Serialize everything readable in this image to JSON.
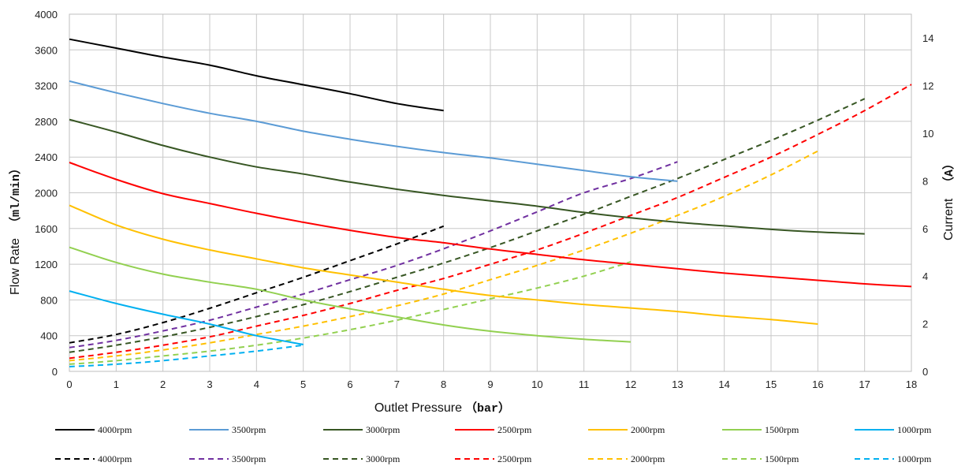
{
  "chart_data": {
    "type": "line",
    "x_axis": {
      "label": "Outlet Pressure",
      "unit": "（bar）",
      "range": [
        0,
        18
      ],
      "ticks": [
        "0",
        "1",
        "2",
        "3",
        "4",
        "5",
        "6",
        "7",
        "8",
        "9",
        "10",
        "11",
        "12",
        "13",
        "14",
        "15",
        "16",
        "17",
        "18"
      ]
    },
    "y_axis_left": {
      "label": "Flow Rate",
      "unit": "（ml/min）",
      "range": [
        0,
        4000
      ],
      "ticks": [
        "0",
        "400",
        "800",
        "1200",
        "1600",
        "2000",
        "2400",
        "2800",
        "3200",
        "3600",
        "4000"
      ]
    },
    "y_axis_right": {
      "label": "Current",
      "unit": "（A）",
      "range": [
        0,
        15
      ],
      "ticks": [
        "0",
        "2",
        "4",
        "6",
        "8",
        "10",
        "12",
        "14"
      ]
    },
    "grid": true,
    "legend_position": "bottom",
    "flow_series": [
      {
        "name": "4000rpm",
        "color": "#000000",
        "x": [
          0,
          1,
          2,
          3,
          4,
          5,
          6,
          7,
          8
        ],
        "y": [
          3720,
          3620,
          3520,
          3430,
          3310,
          3210,
          3110,
          3000,
          2920
        ]
      },
      {
        "name": "3500rpm",
        "color": "#5b9bd5",
        "x": [
          0,
          1,
          2,
          3,
          4,
          5,
          6,
          7,
          8,
          9,
          10,
          11,
          12,
          13
        ],
        "y": [
          3250,
          3120,
          3000,
          2890,
          2800,
          2690,
          2600,
          2520,
          2450,
          2390,
          2320,
          2250,
          2180,
          2130
        ]
      },
      {
        "name": "3000rpm",
        "color": "#375623",
        "x": [
          0,
          1,
          2,
          3,
          4,
          5,
          6,
          7,
          8,
          9,
          10,
          11,
          12,
          13,
          14,
          15,
          16,
          17
        ],
        "y": [
          2820,
          2680,
          2530,
          2400,
          2290,
          2210,
          2120,
          2040,
          1970,
          1910,
          1850,
          1780,
          1720,
          1670,
          1630,
          1590,
          1560,
          1540
        ]
      },
      {
        "name": "2500rpm",
        "color": "#ff0000",
        "x": [
          0,
          1,
          2,
          3,
          4,
          5,
          6,
          7,
          8,
          9,
          10,
          11,
          12,
          13,
          14,
          15,
          16,
          17,
          18
        ],
        "y": [
          2340,
          2150,
          1990,
          1880,
          1770,
          1670,
          1580,
          1500,
          1440,
          1370,
          1310,
          1250,
          1200,
          1150,
          1100,
          1060,
          1020,
          980,
          950
        ]
      },
      {
        "name": "2000rpm",
        "color": "#ffc000",
        "x": [
          0,
          1,
          2,
          3,
          4,
          5,
          6,
          7,
          8,
          9,
          10,
          11,
          12,
          13,
          14,
          15,
          16
        ],
        "y": [
          1860,
          1640,
          1480,
          1360,
          1260,
          1160,
          1080,
          1000,
          920,
          850,
          800,
          750,
          710,
          670,
          620,
          580,
          530
        ]
      },
      {
        "name": "1500rpm",
        "color": "#92d050",
        "x": [
          0,
          1,
          2,
          3,
          4,
          5,
          6,
          7,
          8,
          9,
          10,
          11,
          12
        ],
        "y": [
          1390,
          1220,
          1090,
          1000,
          920,
          800,
          700,
          610,
          520,
          450,
          400,
          360,
          330
        ]
      },
      {
        "name": "1000rpm",
        "color": "#00b0f0",
        "x": [
          0,
          1,
          2,
          3,
          4,
          5
        ],
        "y": [
          900,
          760,
          640,
          530,
          400,
          300
        ]
      }
    ],
    "current_series": [
      {
        "name": "4000rpm",
        "color": "#000000",
        "x": [
          0,
          1,
          2,
          3,
          4,
          5,
          6,
          7,
          8
        ],
        "y": [
          1.2,
          1.55,
          2.05,
          2.65,
          3.3,
          3.95,
          4.65,
          5.35,
          6.1
        ]
      },
      {
        "name": "3500rpm",
        "color": "#7030a0",
        "x": [
          0,
          1,
          2,
          3,
          4,
          5,
          6,
          7,
          8,
          9,
          10,
          11,
          12,
          13
        ],
        "y": [
          1.0,
          1.3,
          1.7,
          2.15,
          2.7,
          3.25,
          3.85,
          4.45,
          5.15,
          5.9,
          6.7,
          7.5,
          8.1,
          8.8
        ]
      },
      {
        "name": "3000rpm",
        "color": "#375623",
        "x": [
          0,
          1,
          2,
          3,
          4,
          5,
          6,
          7,
          8,
          9,
          10,
          11,
          12,
          13,
          14,
          15,
          16,
          17
        ],
        "y": [
          0.8,
          1.1,
          1.45,
          1.85,
          2.3,
          2.8,
          3.35,
          3.95,
          4.55,
          5.2,
          5.9,
          6.6,
          7.35,
          8.1,
          8.9,
          9.7,
          10.55,
          11.45
        ]
      },
      {
        "name": "2500rpm",
        "color": "#ff0000",
        "x": [
          0,
          1,
          2,
          3,
          4,
          5,
          6,
          7,
          8,
          9,
          10,
          11,
          12,
          13,
          14,
          15,
          16,
          17,
          18
        ],
        "y": [
          0.55,
          0.8,
          1.1,
          1.45,
          1.9,
          2.35,
          2.85,
          3.4,
          3.9,
          4.5,
          5.1,
          5.8,
          6.55,
          7.3,
          8.15,
          9.0,
          9.95,
          10.95,
          12.05
        ]
      },
      {
        "name": "2000rpm",
        "color": "#ffc000",
        "x": [
          0,
          1,
          2,
          3,
          4,
          5,
          6,
          7,
          8,
          9,
          10,
          11,
          12,
          13,
          14,
          15,
          16
        ],
        "y": [
          0.45,
          0.65,
          0.9,
          1.2,
          1.55,
          1.9,
          2.3,
          2.75,
          3.25,
          3.85,
          4.45,
          5.1,
          5.8,
          6.55,
          7.35,
          8.25,
          9.25
        ]
      },
      {
        "name": "1500rpm",
        "color": "#92d050",
        "x": [
          0,
          1,
          2,
          3,
          4,
          5,
          6,
          7,
          8,
          9,
          10,
          11,
          12
        ],
        "y": [
          0.3,
          0.45,
          0.65,
          0.85,
          1.1,
          1.4,
          1.75,
          2.15,
          2.6,
          3.05,
          3.5,
          4.0,
          4.6
        ]
      },
      {
        "name": "1000rpm",
        "color": "#00b0f0",
        "x": [
          0,
          1,
          2,
          3,
          4,
          5
        ],
        "y": [
          0.2,
          0.3,
          0.45,
          0.65,
          0.85,
          1.1
        ]
      }
    ]
  }
}
